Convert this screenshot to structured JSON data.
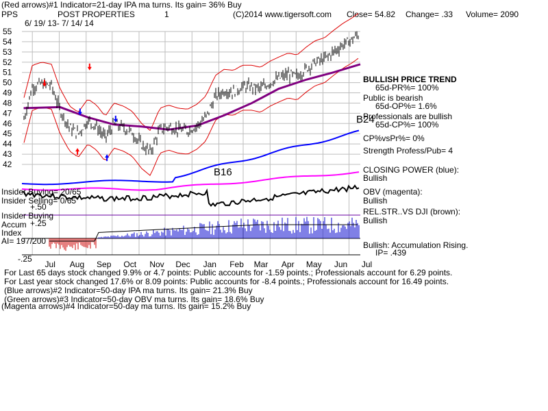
{
  "header": {
    "line1": "(Red arrows)#1 Indicator=21-day IPA ma turns. Its gain= 36% Buy",
    "symbol": "PPS",
    "company": "POST PROPERTIES",
    "one": "1",
    "copyright": "(C)2014 www.tigersoft.com",
    "close": "Close= 54.82",
    "change": "Change= .33",
    "volume": "Volume= 2090",
    "date_range": "6/ 19/ 13-  7/ 14/ 14"
  },
  "annotations": {
    "bullish_trend": "BULLISH PRICE TREND",
    "pr65": "65d-PR%= 100%",
    "public_bearish": "Public is bearish",
    "op65": "65d-OP%= 1.6%",
    "professionals_bullish": "Professionals are bullish",
    "cp65": "65d-CP%= 100%",
    "b24": "B24",
    "b16": "B16",
    "cp_vs_pr": "CP%vsPr%=  0%",
    "strength": "Strength Profess/Pub= 4",
    "closing_power": "CLOSING POWER (blue):",
    "closing_power_state": "Bullish",
    "obv": "OBV (magenta):",
    "obv_state": "Bullish",
    "relstr": "REL.STR..VS DJI (brown):",
    "relstr_state": "Bullish",
    "accum_state": "Bullish: Accumulation Rising.",
    "ip": "IP=  .439",
    "insider_buying_ratio": "Insider Buying= 20/65",
    "insider_selling_ratio": "Insider Selling= 0/65",
    "plus50": "+.50",
    "insider_buying": "Insider Buying",
    "accum": "Accum",
    "plus25": "+.25",
    "index": "Index",
    "ai": "AI= 197/200",
    "minus25": "-.25"
  },
  "footer": {
    "line1": "For Last 65 days stock changed  9.9% or  4.7 points:  Public accounts for -1.59 points.;  Professionals account for  6.29 points.",
    "line2": "For Last year stock changed  17.6% or  8.09 points:  Public accounts for -8.4 points.;  Professionals account for  16.49 points.",
    "line3": "(Blue arrows)#2 Indicator=50-day IPA ma turns. Its gain= 21.3% Buy",
    "line4": "(Green arrows)#3 Indicator=50-day OBV ma turns. Its gain= 18.6% Buy",
    "line5": "(Magenta arrows)#4 Indicator=50-day ma turns. Its gain= 15.2% Buy"
  },
  "colors": {
    "price": "#000000",
    "band": "#dd0000",
    "ma": "#800080",
    "closing_power": "#0000ff",
    "obv": "#ff00ff",
    "relstr": "#000000",
    "accum_pos": "#0000cc",
    "accum_neg": "#cc0000",
    "rising": "#ff0000"
  },
  "chart_data": {
    "type": "line",
    "title": "POST PROPERTIES",
    "xlabel": "",
    "ylabel": "",
    "y_ticks": [
      55,
      54,
      53,
      52,
      51,
      50,
      49,
      48,
      47,
      46,
      45,
      44,
      43,
      42
    ],
    "ylim": [
      41.5,
      55.8
    ],
    "x_ticks": [
      "Jul",
      "Aug",
      "Sep",
      "Oct",
      "Nov",
      "Dec",
      "Jan",
      "Feb",
      "Mar",
      "Apr",
      "May",
      "Jun",
      "Jul"
    ],
    "grid": true,
    "series": [
      {
        "name": "",
        "note": "price close (approx weekly)",
        "x": [
          "2013-06-21",
          "2013-07-01",
          "2013-07-12",
          "2013-07-23",
          "2013-08-02",
          "2013-08-13",
          "2013-08-23",
          "2013-09-03",
          "2013-09-13",
          "2013-09-23",
          "2013-10-03",
          "2013-10-14",
          "2013-10-24",
          "2013-11-04",
          "2013-11-14",
          "2013-11-25",
          "2013-12-05",
          "2013-12-16",
          "2013-12-27",
          "2014-01-07",
          "2014-01-17",
          "2014-01-28",
          "2014-02-07",
          "2014-02-18",
          "2014-02-28",
          "2014-03-11",
          "2014-03-21",
          "2014-04-01",
          "2014-04-11",
          "2014-04-22",
          "2014-05-02",
          "2014-05-13",
          "2014-05-23",
          "2014-06-03",
          "2014-06-13",
          "2014-06-24",
          "2014-07-04",
          "2014-07-14"
        ],
        "y": [
          46.3,
          49.6,
          49.9,
          49.7,
          47.3,
          45.6,
          45.0,
          46.3,
          45.7,
          44.6,
          45.9,
          45.6,
          45.1,
          43.9,
          43.2,
          45.4,
          45.7,
          45.4,
          45.3,
          45.8,
          46.6,
          48.6,
          49.2,
          49.1,
          49.6,
          49.6,
          49.4,
          50.0,
          50.4,
          50.8,
          50.6,
          51.4,
          52.0,
          52.3,
          53.0,
          53.7,
          54.2,
          54.82
        ]
      },
      {
        "name": "",
        "note": "moving average (purple)",
        "x": [
          "2013-06-21",
          "2013-08-02",
          "2013-09-03",
          "2013-10-03",
          "2013-11-04",
          "2013-12-05",
          "2014-01-07",
          "2014-02-07",
          "2014-03-11",
          "2014-04-11",
          "2014-05-13",
          "2014-06-13",
          "2014-07-14"
        ],
        "y": [
          47.5,
          47.6,
          46.6,
          45.9,
          45.7,
          45.4,
          45.8,
          46.8,
          48.0,
          49.4,
          50.3,
          51.0,
          51.8
        ]
      }
    ],
    "annotations": [
      "B24",
      "B16"
    ]
  }
}
